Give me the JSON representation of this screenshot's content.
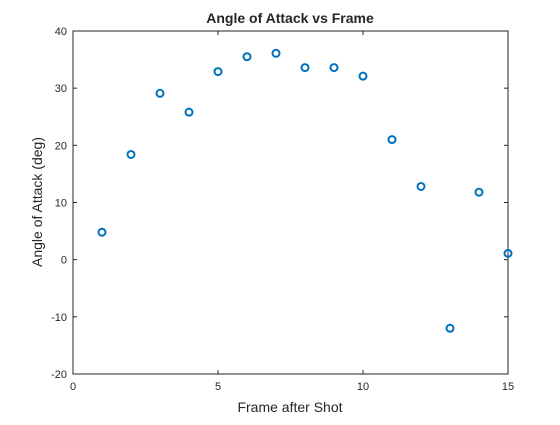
{
  "chart_data": {
    "type": "scatter",
    "title": "Angle of Attack vs Frame",
    "xlabel": "Frame after Shot",
    "ylabel": "Angle of Attack (deg)",
    "xlim": [
      0,
      15
    ],
    "ylim": [
      -20,
      40
    ],
    "xticks": [
      "0",
      "5",
      "10",
      "15"
    ],
    "yticks": [
      "-20",
      "-10",
      "0",
      "10",
      "20",
      "30",
      "40"
    ],
    "grid": false,
    "legend": "none",
    "marker": "open-circle",
    "marker_color": "#0072BD",
    "x": [
      1,
      2,
      3,
      4,
      5,
      6,
      7,
      8,
      9,
      10,
      11,
      12,
      13,
      14,
      15
    ],
    "y": [
      4.8,
      18.4,
      29.1,
      25.8,
      32.9,
      35.5,
      36.1,
      33.6,
      33.6,
      32.1,
      21.0,
      12.8,
      -12.0,
      11.8,
      1.1
    ]
  }
}
